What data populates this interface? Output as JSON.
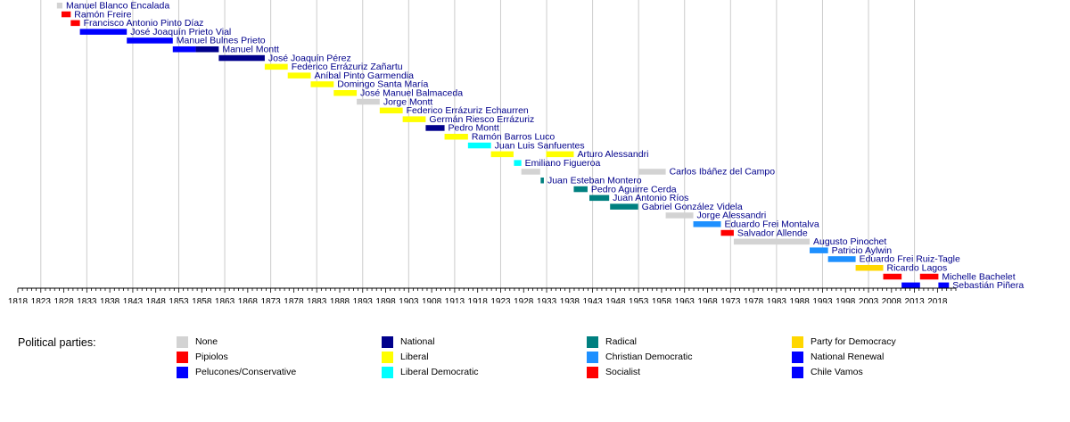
{
  "chart_data": {
    "type": "timeline",
    "xlim": [
      1818,
      2022
    ],
    "ticks": [
      1818,
      1823,
      1828,
      1833,
      1838,
      1843,
      1848,
      1853,
      1858,
      1863,
      1868,
      1873,
      1878,
      1883,
      1888,
      1893,
      1898,
      1903,
      1908,
      1913,
      1918,
      1923,
      1928,
      1933,
      1938,
      1943,
      1948,
      1953,
      1958,
      1963,
      1968,
      1973,
      1978,
      1983,
      1988,
      1993,
      1998,
      2003,
      2008,
      2013,
      2018
    ],
    "presidents": [
      {
        "name": "Manuel Blanco Encalada",
        "start": 1826.5,
        "end": 1827.7,
        "party": "none"
      },
      {
        "name": "Ramón Freire",
        "start": 1827.5,
        "end": 1829.5,
        "party": "pipiolos"
      },
      {
        "name": "Francisco Antonio Pinto Díaz",
        "start": 1829.5,
        "end": 1831.5,
        "party": "pipiolos"
      },
      {
        "name": "José Joaquín Prieto Vial",
        "start": 1831.5,
        "end": 1841.7,
        "party": "pelucones"
      },
      {
        "name": "Manuel Bulnes Prieto",
        "start": 1841.7,
        "end": 1851.7,
        "party": "pelucones"
      },
      {
        "name": "Manuel Montt",
        "start": 1851.7,
        "end": 1861.7,
        "party": "pelucones_national"
      },
      {
        "name": "José Joaquín Pérez",
        "start": 1861.7,
        "end": 1871.7,
        "party": "national"
      },
      {
        "name": "Federico Errázuriz Zañartu",
        "start": 1871.7,
        "end": 1876.7,
        "party": "liberal"
      },
      {
        "name": "Aníbal Pinto Garmendia",
        "start": 1876.7,
        "end": 1881.7,
        "party": "liberal"
      },
      {
        "name": "Domingo Santa María",
        "start": 1881.7,
        "end": 1886.7,
        "party": "liberal"
      },
      {
        "name": "José Manuel Balmaceda",
        "start": 1886.7,
        "end": 1891.7,
        "party": "liberal"
      },
      {
        "name": "Jorge Montt",
        "start": 1891.7,
        "end": 1896.7,
        "party": "none"
      },
      {
        "name": "Federico Errázuriz Echaurren",
        "start": 1896.7,
        "end": 1901.7,
        "party": "liberal"
      },
      {
        "name": "Germán Riesco Errázuriz",
        "start": 1901.7,
        "end": 1906.7,
        "party": "liberal"
      },
      {
        "name": "Pedro Montt",
        "start": 1906.7,
        "end": 1910.8,
        "party": "national"
      },
      {
        "name": "Ramón Barros Luco",
        "start": 1910.8,
        "end": 1915.9,
        "party": "liberal"
      },
      {
        "name": "Juan Luis Sanfuentes",
        "start": 1915.9,
        "end": 1920.9,
        "party": "liberal_democratic"
      },
      {
        "name": "Arturo Alessandri",
        "start": 1920.9,
        "end": 1925.8,
        "party": "liberal",
        "extra": [
          {
            "start": 1932.9,
            "end": 1938.9,
            "party": "liberal"
          }
        ]
      },
      {
        "name": "Emiliano Figueroa",
        "start": 1925.9,
        "end": 1927.5,
        "party": "liberal_democratic"
      },
      {
        "name": "Carlos Ibáñez del Campo",
        "start": 1927.5,
        "end": 1931.6,
        "party": "none",
        "extra": [
          {
            "start": 1952.9,
            "end": 1958.9,
            "party": "none"
          }
        ]
      },
      {
        "name": "Juan Esteban Montero",
        "start": 1931.7,
        "end": 1932.4,
        "party": "radical"
      },
      {
        "name": "Pedro Aguirre Cerda",
        "start": 1938.9,
        "end": 1941.9,
        "party": "radical"
      },
      {
        "name": "Juan Antonio Ríos",
        "start": 1942.3,
        "end": 1946.6,
        "party": "radical"
      },
      {
        "name": "Gabriel González Videla",
        "start": 1946.8,
        "end": 1952.9,
        "party": "radical"
      },
      {
        "name": "Jorge Alessandri",
        "start": 1958.9,
        "end": 1964.9,
        "party": "none"
      },
      {
        "name": "Eduardo Frei Montalva",
        "start": 1964.9,
        "end": 1970.9,
        "party": "christian_democratic"
      },
      {
        "name": "Salvador Allende",
        "start": 1970.9,
        "end": 1973.7,
        "party": "socialist"
      },
      {
        "name": "Augusto Pinochet",
        "start": 1973.7,
        "end": 1990.2,
        "party": "none"
      },
      {
        "name": "Patricio Aylwin",
        "start": 1990.2,
        "end": 1994.2,
        "party": "christian_democratic"
      },
      {
        "name": "Eduardo Frei Ruiz-Tagle",
        "start": 1994.2,
        "end": 2000.2,
        "party": "christian_democratic"
      },
      {
        "name": "Ricardo Lagos",
        "start": 2000.2,
        "end": 2006.2,
        "party": "ppd"
      },
      {
        "name": "Michelle Bachelet",
        "start": 2006.2,
        "end": 2010.2,
        "party": "socialist",
        "extra": [
          {
            "start": 2014.2,
            "end": 2018.2,
            "party": "socialist"
          }
        ]
      },
      {
        "name": "Sebastián Piñera",
        "start": 2010.2,
        "end": 2014.2,
        "party": "renewal",
        "extra": [
          {
            "start": 2018.2,
            "end": 2020.5,
            "party": "chile_vamos"
          }
        ]
      }
    ]
  },
  "legend": {
    "title": "Political parties:",
    "items": [
      {
        "key": "none",
        "label": "None",
        "color": "#d3d3d3"
      },
      {
        "key": "pipiolos",
        "label": "Pipiolos",
        "color": "#ff0000"
      },
      {
        "key": "pelucones",
        "label": "Pelucones/Conservative",
        "color": "#0000ff"
      },
      {
        "key": "national",
        "label": "National",
        "color": "#00008b"
      },
      {
        "key": "liberal",
        "label": "Liberal",
        "color": "#ffff00"
      },
      {
        "key": "liberal_democratic",
        "label": "Liberal Democratic",
        "color": "#00ffff"
      },
      {
        "key": "radical",
        "label": "Radical",
        "color": "#008080"
      },
      {
        "key": "christian_democratic",
        "label": "Christian Democratic",
        "color": "#1e90ff"
      },
      {
        "key": "socialist",
        "label": "Socialist",
        "color": "#ff0000"
      },
      {
        "key": "ppd",
        "label": "Party for Democracy",
        "color": "#ffd700"
      },
      {
        "key": "renewal",
        "label": "National Renewal",
        "color": "#0000ff"
      },
      {
        "key": "chile_vamos",
        "label": "Chile Vamos",
        "color": "#0000ff"
      }
    ]
  }
}
